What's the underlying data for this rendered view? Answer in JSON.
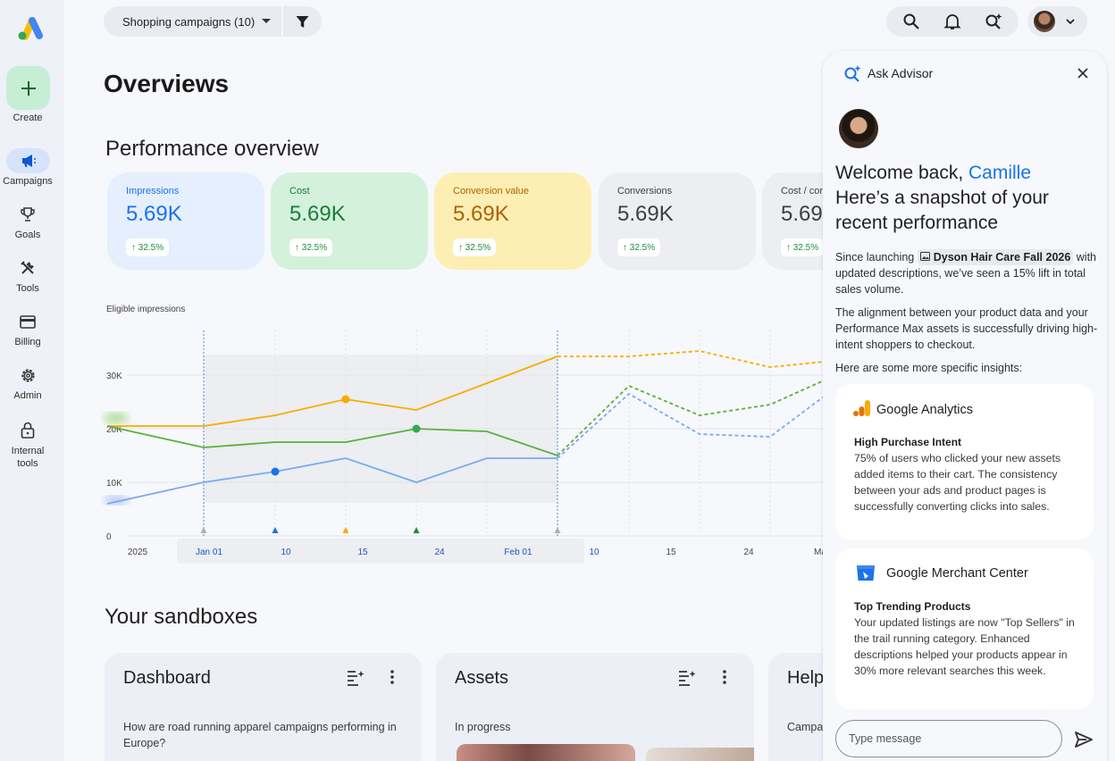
{
  "nav": {
    "create_label": "Create",
    "items": [
      {
        "label": "Campaigns",
        "icon": "megaphone-icon",
        "active": true
      },
      {
        "label": "Goals",
        "icon": "trophy-icon"
      },
      {
        "label": "Tools",
        "icon": "tools-icon"
      },
      {
        "label": "Billing",
        "icon": "credit-card-icon"
      },
      {
        "label": "Admin",
        "icon": "gear-icon"
      },
      {
        "label": "Internal",
        "label2": "tools",
        "icon": "lock-icon"
      }
    ]
  },
  "topbar": {
    "filter_label": "Shopping campaigns (10)"
  },
  "page": {
    "title": "Overviews",
    "performance_title": "Performance overview",
    "metrics": [
      {
        "label": "Impressions",
        "value": "5.69K",
        "delta": "↑ 32.5%",
        "bg": "#e5effd",
        "fg": "#1a73e8"
      },
      {
        "label": "Cost",
        "value": "5.69K",
        "delta": "↑ 32.5%",
        "bg": "#d4f1db",
        "fg": "#188038"
      },
      {
        "label": "Conversion value",
        "value": "5.69K",
        "delta": "↑ 32.5%",
        "bg": "#fdefb3",
        "fg": "#b06000"
      },
      {
        "label": "Conversions",
        "value": "5.69K",
        "delta": "↑ 32.5%",
        "bg": "#eceef2",
        "fg": "#3c4043"
      },
      {
        "label": "Cost / con",
        "value": "5.69",
        "delta": "↑ 32.5%",
        "bg": "#eceef2",
        "fg": "#3c4043"
      }
    ]
  },
  "chart_data": {
    "type": "line",
    "title": "Eligible impressions",
    "y_ticks": [
      "30K",
      "20K",
      "10K",
      "0"
    ],
    "x_ticks": [
      "2025",
      "Jan 01",
      "10",
      "15",
      "24",
      "Feb 01",
      "10",
      "15",
      "24",
      "Ma"
    ],
    "ylim": [
      0,
      34000
    ],
    "x": [
      "2025",
      "Jan 01",
      "10",
      "15",
      "19",
      "24",
      "Feb 01",
      "10",
      "15",
      "19",
      "24",
      "Ma"
    ],
    "series": [
      {
        "color": "#f9ab00",
        "values": [
          20500,
          20500,
          22500,
          25500,
          23500,
          28500,
          33500,
          33500,
          34500,
          31500,
          32500,
          33500
        ]
      },
      {
        "color": "#5bb03b",
        "values": [
          20500,
          16500,
          17500,
          17500,
          20000,
          19500,
          15000,
          28000,
          22500,
          24500,
          29000,
          31000
        ]
      },
      {
        "color": "#7baaf0",
        "values": [
          6000,
          10000,
          12000,
          14500,
          10000,
          14500,
          14500,
          26500,
          19000,
          18500,
          26000,
          28500
        ]
      }
    ],
    "dashed_from_index": 6
  },
  "sandboxes": {
    "title": "Your sandboxes",
    "cards": [
      {
        "title": "Dashboard",
        "body": "How are road running apparel campaigns performing in Europe?"
      },
      {
        "title": "Assets",
        "body": "In progress"
      },
      {
        "title": "Help",
        "body": "Campa"
      }
    ]
  },
  "advisor": {
    "title": "Ask Advisor",
    "welcome_prefix": "Welcome back,",
    "user_name": "Camille",
    "welcome_line2": "Here’s a snapshot of your recent performance",
    "para1_before": "Since launching",
    "campaign_name": "Dyson Hair Care Fall 2026",
    "para1_after": "with updated descriptions, we’ve seen a 15% lift in total sales volume.",
    "para2": "The alignment between your product data and your Performance Max assets is successfully driving high-intent shoppers to checkout.",
    "para3": "Here are some more specific insights:",
    "insights": [
      {
        "source": "Google Analytics",
        "heading": "High Purchase Intent",
        "body": "75% of users who clicked your new assets added items to their cart. The consistency between your ads and product pages is successfully converting clicks into sales."
      },
      {
        "source": "Google Merchant Center",
        "heading": "Top Trending Products",
        "body": "Your updated listings are now \"Top Sellers\" in the trail running category. Enhanced descriptions helped your products appear in 30% more relevant searches this week."
      }
    ],
    "input_placeholder": "Type message"
  }
}
